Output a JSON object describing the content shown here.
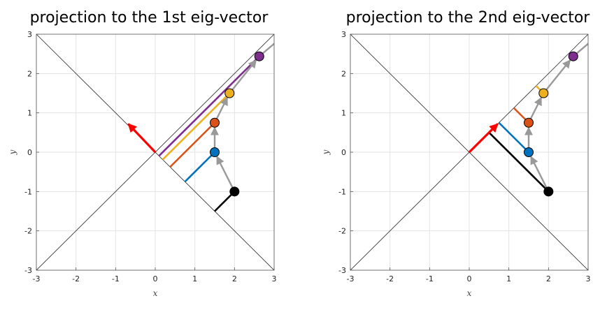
{
  "chart_data": [
    {
      "type": "line",
      "title": "projection to the 1st eig-vector",
      "xlabel": "x",
      "ylabel": "y",
      "xlim": [
        -3,
        3
      ],
      "ylim": [
        -3,
        3
      ],
      "xticks": [
        -3,
        -2,
        -1,
        0,
        1,
        2,
        3
      ],
      "yticks": [
        -3,
        -2,
        -1,
        0,
        1,
        2,
        3
      ],
      "xtick_labels": [
        "-3",
        "-2",
        "-1",
        "0",
        "1",
        "2",
        "3"
      ],
      "ytick_labels": [
        "-3",
        "-2",
        "-1",
        "0",
        "1",
        "2",
        "3"
      ],
      "grid": true,
      "eigen_lines": [
        {
          "name": "diag-line",
          "from": [
            -3,
            -3
          ],
          "to": [
            3,
            3
          ]
        },
        {
          "name": "anti-diag-line",
          "from": [
            -3,
            3
          ],
          "to": [
            3,
            -3
          ]
        }
      ],
      "trajectory": [
        [
          2,
          -1
        ],
        [
          1.5,
          0
        ],
        [
          1.5,
          0.75
        ],
        [
          1.875,
          1.5
        ],
        [
          2.625,
          2.4375
        ],
        [
          3.75,
          3.4
        ]
      ],
      "points": [
        {
          "name": "point-0",
          "x": 2,
          "y": -1,
          "color": "#000000"
        },
        {
          "name": "point-1",
          "x": 1.5,
          "y": 0,
          "color": "#0072BD"
        },
        {
          "name": "point-2",
          "x": 1.5,
          "y": 0.75,
          "color": "#D95319"
        },
        {
          "name": "point-3",
          "x": 1.875,
          "y": 1.5,
          "color": "#EDB120"
        },
        {
          "name": "point-4",
          "x": 2.625,
          "y": 2.4375,
          "color": "#7E2F8E"
        }
      ],
      "projections": [
        {
          "name": "proj-0",
          "from": [
            2,
            -1
          ],
          "to": [
            1.5,
            -1.5
          ],
          "color": "#000000"
        },
        {
          "name": "proj-1",
          "from": [
            1.5,
            0
          ],
          "to": [
            0.75,
            -0.75
          ],
          "color": "#0072BD"
        },
        {
          "name": "proj-2",
          "from": [
            1.5,
            0.75
          ],
          "to": [
            0.375,
            -0.375
          ],
          "color": "#D95319"
        },
        {
          "name": "proj-3",
          "from": [
            1.875,
            1.5
          ],
          "to": [
            0.1875,
            -0.1875
          ],
          "color": "#EDB120"
        },
        {
          "name": "proj-4",
          "from": [
            2.625,
            2.4375
          ],
          "to": [
            0.09375,
            -0.09375
          ],
          "color": "#7E2F8E"
        }
      ],
      "eig_arrow": {
        "from": [
          0,
          0
        ],
        "to": [
          -0.68,
          0.72
        ],
        "color": "#FF0000"
      }
    },
    {
      "type": "line",
      "title": "projection to the 2nd eig-vector",
      "xlabel": "x",
      "ylabel": "y",
      "xlim": [
        -3,
        3
      ],
      "ylim": [
        -3,
        3
      ],
      "xticks": [
        -3,
        -2,
        -1,
        0,
        1,
        2,
        3
      ],
      "yticks": [
        -3,
        -2,
        -1,
        0,
        1,
        2,
        3
      ],
      "xtick_labels": [
        "-3",
        "-2",
        "-1",
        "0",
        "1",
        "2",
        "3"
      ],
      "ytick_labels": [
        "-3",
        "-2",
        "-1",
        "0",
        "1",
        "2",
        "3"
      ],
      "grid": true,
      "eigen_lines": [
        {
          "name": "diag-line",
          "from": [
            -3,
            -3
          ],
          "to": [
            3,
            3
          ]
        },
        {
          "name": "anti-diag-line",
          "from": [
            -3,
            3
          ],
          "to": [
            3,
            -3
          ]
        }
      ],
      "trajectory": [
        [
          2,
          -1
        ],
        [
          1.5,
          0
        ],
        [
          1.5,
          0.75
        ],
        [
          1.875,
          1.5
        ],
        [
          2.625,
          2.4375
        ],
        [
          3.75,
          3.4
        ]
      ],
      "points": [
        {
          "name": "point-0",
          "x": 2,
          "y": -1,
          "color": "#000000"
        },
        {
          "name": "point-1",
          "x": 1.5,
          "y": 0,
          "color": "#0072BD"
        },
        {
          "name": "point-2",
          "x": 1.5,
          "y": 0.75,
          "color": "#D95319"
        },
        {
          "name": "point-3",
          "x": 1.875,
          "y": 1.5,
          "color": "#EDB120"
        },
        {
          "name": "point-4",
          "x": 2.625,
          "y": 2.4375,
          "color": "#7E2F8E"
        }
      ],
      "projections": [
        {
          "name": "proj-0",
          "from": [
            2,
            -1
          ],
          "to": [
            0.5,
            0.5
          ],
          "color": "#000000"
        },
        {
          "name": "proj-1",
          "from": [
            1.5,
            0
          ],
          "to": [
            0.75,
            0.75
          ],
          "color": "#0072BD"
        },
        {
          "name": "proj-2",
          "from": [
            1.5,
            0.75
          ],
          "to": [
            1.125,
            1.125
          ],
          "color": "#D95319"
        },
        {
          "name": "proj-3",
          "from": [
            1.875,
            1.5
          ],
          "to": [
            1.6875,
            1.6875
          ],
          "color": "#EDB120"
        },
        {
          "name": "proj-4",
          "from": [
            2.625,
            2.4375
          ],
          "to": [
            2.53,
            2.53
          ],
          "color": "#7E2F8E"
        }
      ],
      "eig_arrow": {
        "from": [
          0,
          0
        ],
        "to": [
          0.72,
          0.72
        ],
        "color": "#FF0000"
      }
    }
  ]
}
